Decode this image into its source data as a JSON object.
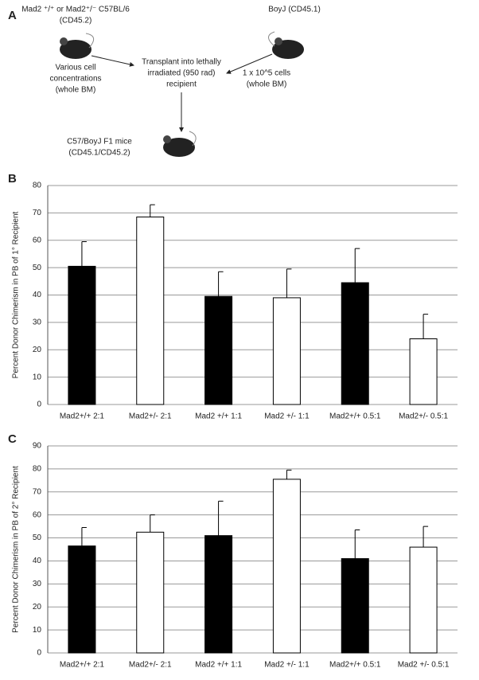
{
  "diagram": {
    "label": "A",
    "donor_lines": [
      "Mad2 ⁺/⁺ or Mad2⁺/⁻ C57BL/6",
      "(CD45.2)"
    ],
    "competitor": "BoyJ (CD45.1)",
    "donor_cells": [
      "Various cell",
      "concentrations",
      "(whole BM)"
    ],
    "transplant": [
      "Transplant into lethally",
      "irradiated  (950 rad)",
      "recipient"
    ],
    "competitor_cells": [
      "1 x 10^5 cells",
      "(whole BM)"
    ],
    "recipient": [
      "C57/BoyJ F1 mice",
      "(CD45.1/CD45.2)"
    ]
  },
  "chart_data": [
    {
      "type": "bar",
      "label": "B",
      "y_label": "Percent Donor Chimerism in PB of 1° Recipient",
      "categories": [
        "Mad2+/+ 2:1",
        "Mad2+/- 2:1",
        "Mad2 +/+ 1:1",
        "Mad2 +/- 1:1",
        "Mad2+/+ 0.5:1",
        "Mad2+/- 0.5:1"
      ],
      "values": [
        50.5,
        68.5,
        39.5,
        39,
        44.5,
        24
      ],
      "errors": [
        9,
        4.5,
        9,
        10.5,
        12.5,
        9
      ],
      "colors": [
        "#000000",
        "#ffffff",
        "#000000",
        "#ffffff",
        "#000000",
        "#ffffff"
      ],
      "ylim": [
        0,
        80
      ],
      "yticks": [
        0,
        10,
        20,
        30,
        40,
        50,
        60,
        70,
        80
      ],
      "grid": true
    },
    {
      "type": "bar",
      "label": "C",
      "y_label": "Percent Donor Chimerism in PB of 2° Recipient",
      "categories": [
        "Mad2+/+ 2:1",
        "Mad2+/- 2:1",
        "Mad2 +/+ 1:1",
        "Mad2 +/- 1:1",
        "Mad2+/+ 0.5:1",
        "Mad2 +/- 0.5:1"
      ],
      "values": [
        46.5,
        52.5,
        51,
        75.5,
        41,
        46
      ],
      "errors": [
        8,
        7.5,
        15,
        4,
        12.5,
        9
      ],
      "colors": [
        "#000000",
        "#ffffff",
        "#000000",
        "#ffffff",
        "#000000",
        "#ffffff"
      ],
      "ylim": [
        0,
        90
      ],
      "yticks": [
        0,
        10,
        20,
        30,
        40,
        50,
        60,
        70,
        80,
        90
      ],
      "grid": true
    }
  ]
}
